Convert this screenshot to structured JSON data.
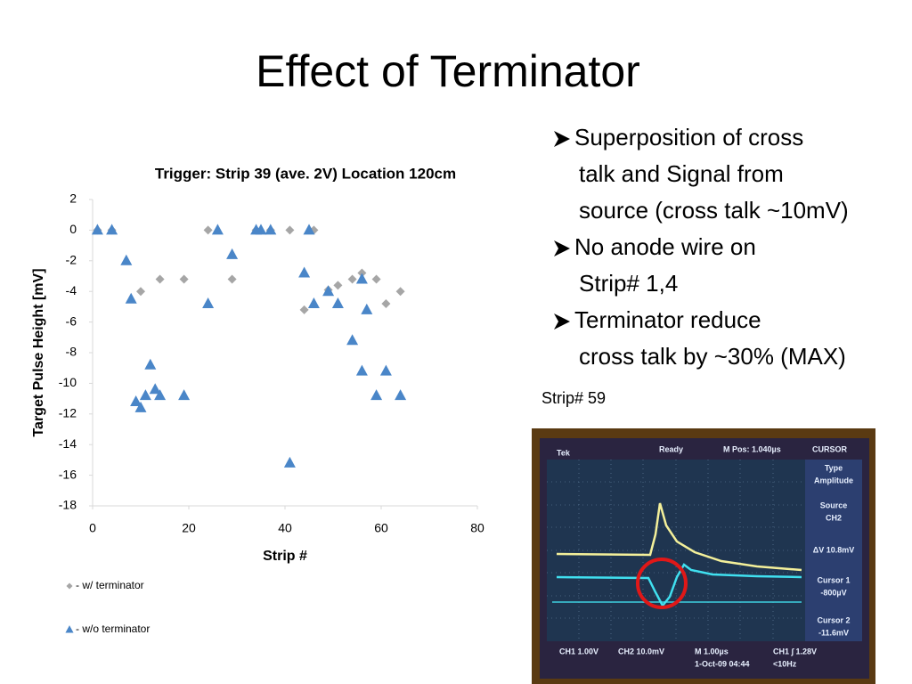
{
  "title": "Effect of Terminator",
  "bullets": [
    [
      "Superposition of cross",
      "talk and Signal from",
      "source (cross talk ~10mV)"
    ],
    [
      "No anode wire on",
      "Strip# 1,4"
    ],
    [
      "Terminator  reduce",
      "cross talk by ~30% (MAX)"
    ]
  ],
  "photo_caption": "Strip# 59",
  "scope": {
    "top": [
      "Tek",
      "Ready",
      "M Pos: 1.040µs",
      "CURSOR"
    ],
    "side": [
      "Type",
      "Amplitude",
      "Source",
      "CH2",
      "ΔV 10.8mV",
      "Cursor 1",
      "-800µV",
      "Cursor 2",
      "-11.6mV"
    ],
    "bottom": [
      "CH1  1.00V",
      "CH2  10.0mV",
      "M 1.00µs",
      "1-Oct-09 04:44",
      "CH1 ∫ 1.28V",
      "<10Hz"
    ]
  },
  "chart_data": {
    "type": "scatter",
    "title": "Trigger: Strip 39  (ave. 2V) Location 120cm",
    "x_label": "Strip #",
    "y_label": "Target Pulse Height [mV]",
    "xlim": [
      0,
      80
    ],
    "xticks": [
      0,
      20,
      40,
      60,
      80
    ],
    "ylim": [
      -18,
      2
    ],
    "yticks": [
      2,
      0,
      -2,
      -4,
      -6,
      -8,
      -10,
      -12,
      -14,
      -16,
      -18
    ],
    "grid": false,
    "legend": "bottom",
    "series": [
      {
        "name": "- w/ terminator",
        "color": "#a6a6a6",
        "marker": "diamond",
        "x": [
          1,
          4,
          10,
          14,
          19,
          24,
          29,
          34,
          37,
          41,
          44,
          46,
          49,
          51,
          54,
          56,
          59,
          61,
          64
        ],
        "values": [
          0,
          0,
          -4,
          -3.2,
          -3.2,
          0,
          -3.2,
          0,
          0,
          0,
          -5.2,
          0,
          -3.9,
          -3.6,
          -3.2,
          -2.8,
          -3.2,
          -4.8,
          -4
        ]
      },
      {
        "name": "- w/o terminator",
        "color": "#4a86c8",
        "marker": "triangle",
        "x": [
          1,
          4,
          7,
          8,
          9,
          10,
          11,
          12,
          13,
          14,
          19,
          24,
          26,
          29,
          34,
          35,
          37,
          41,
          44,
          45,
          46,
          49,
          51,
          54,
          56,
          56,
          57,
          59,
          61,
          64
        ],
        "values": [
          0,
          0,
          -2,
          -4.5,
          -11.2,
          -11.6,
          -10.8,
          -8.8,
          -10.4,
          -10.8,
          -10.8,
          -4.8,
          0,
          -1.6,
          0,
          0,
          0,
          -15.2,
          -2.8,
          0,
          -4.8,
          -4,
          -4.8,
          -7.2,
          -3.2,
          -9.2,
          -5.2,
          -10.8,
          -9.2,
          -10.8
        ]
      }
    ]
  }
}
